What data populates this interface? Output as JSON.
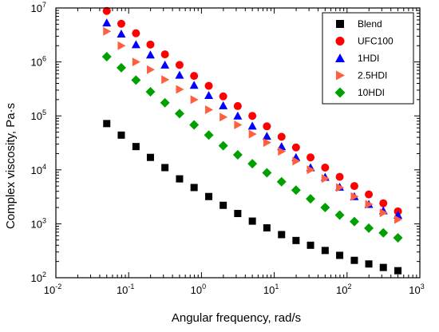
{
  "chart_data": {
    "type": "scatter",
    "xlabel": "Angular frequency, rad/s",
    "ylabel": "Complex viscosity, Pa·s",
    "xscale": "log",
    "yscale": "log",
    "xlim": [
      0.01,
      1000
    ],
    "ylim": [
      100,
      10000000
    ],
    "x_tick_labels": [
      {
        "base": "10",
        "exp": "-2"
      },
      {
        "base": "10",
        "exp": "-1"
      },
      {
        "base": "10",
        "exp": "0"
      },
      {
        "base": "10",
        "exp": "1"
      },
      {
        "base": "10",
        "exp": "2"
      },
      {
        "base": "10",
        "exp": "3"
      }
    ],
    "y_tick_labels": [
      {
        "base": "10",
        "exp": "2"
      },
      {
        "base": "10",
        "exp": "3"
      },
      {
        "base": "10",
        "exp": "4"
      },
      {
        "base": "10",
        "exp": "5"
      },
      {
        "base": "10",
        "exp": "6"
      },
      {
        "base": "10",
        "exp": "7"
      }
    ],
    "legend_position": "top-right",
    "grid": false,
    "x": [
      0.05,
      0.0792,
      0.126,
      0.199,
      0.315,
      0.5,
      0.792,
      1.26,
      1.99,
      3.15,
      5,
      7.92,
      12.6,
      19.9,
      31.5,
      50,
      79.2,
      126,
      199,
      315,
      500
    ],
    "series": [
      {
        "name": "Blend",
        "marker": "square",
        "color": "#000000",
        "values": [
          72000,
          44000,
          27000,
          17000,
          11000,
          6800,
          4700,
          3200,
          2200,
          1550,
          1120,
          840,
          630,
          490,
          400,
          320,
          260,
          210,
          180,
          155,
          135
        ]
      },
      {
        "name": "UFC100",
        "marker": "circle",
        "color": "#ff0000",
        "values": [
          8800000,
          5100000,
          3400000,
          2100000,
          1380000,
          880000,
          550000,
          360000,
          230000,
          152000,
          100000,
          64000,
          41000,
          26000,
          17000,
          11000,
          7400,
          5000,
          3500,
          2400,
          1700
        ]
      },
      {
        "name": "1HDI",
        "marker": "triangle-up",
        "color": "#0000ff",
        "values": [
          5300000,
          3300000,
          2100000,
          1350000,
          880000,
          570000,
          370000,
          240000,
          155000,
          100000,
          65000,
          42000,
          27000,
          17000,
          11000,
          7300,
          4800,
          3200,
          2300,
          1750,
          1450
        ]
      },
      {
        "name": "2.5HDI",
        "marker": "triangle-right",
        "color": "#ff5f3f",
        "values": [
          3700000,
          2000000,
          1000000,
          720000,
          470000,
          310000,
          200000,
          130000,
          95000,
          68000,
          46000,
          32000,
          22000,
          14500,
          10000,
          6900,
          4700,
          3200,
          2300,
          1600,
          1200
        ]
      },
      {
        "name": "10HDI",
        "marker": "diamond",
        "color": "#00a000",
        "values": [
          1250000,
          780000,
          460000,
          280000,
          175000,
          110000,
          68000,
          44000,
          28000,
          19000,
          13000,
          8800,
          6000,
          4200,
          2900,
          2000,
          1450,
          1100,
          830,
          680,
          550
        ]
      }
    ]
  }
}
